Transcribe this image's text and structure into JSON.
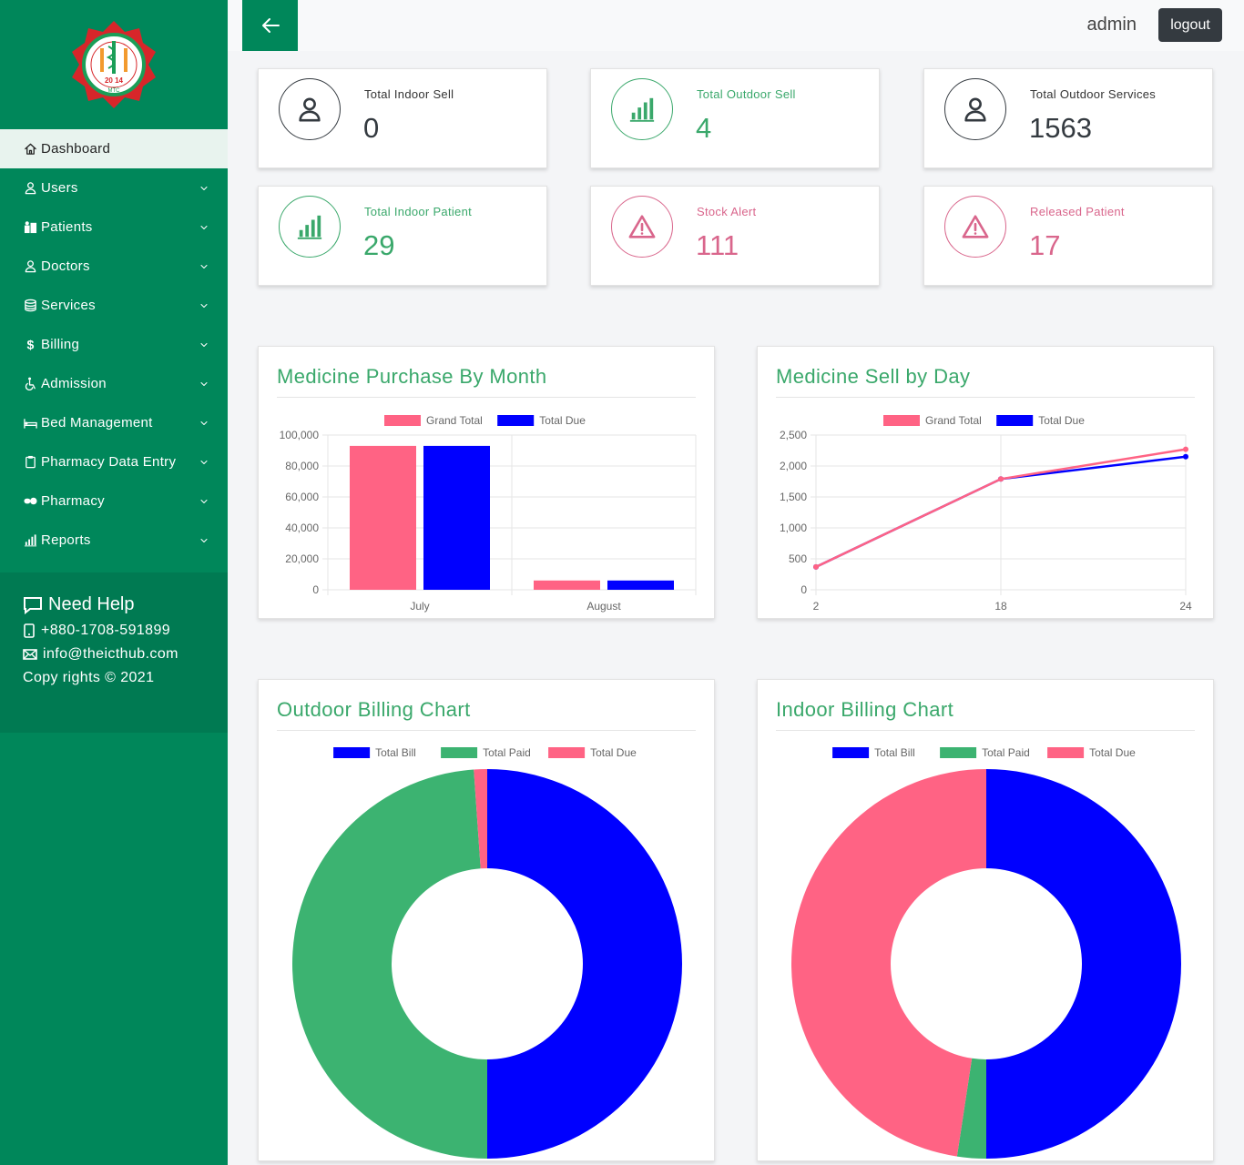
{
  "app": {
    "logo_text": [
      "MOMTAJ TRAUMA CENTRE",
      "20",
      "14",
      "MTC"
    ]
  },
  "sidebar": {
    "items": [
      {
        "label": "Dashboard",
        "icon": "home-icon",
        "active": true
      },
      {
        "label": "Users",
        "icon": "user-icon"
      },
      {
        "label": "Patients",
        "icon": "patients-icon"
      },
      {
        "label": "Doctors",
        "icon": "user-icon"
      },
      {
        "label": "Services",
        "icon": "database-icon"
      },
      {
        "label": "Billing",
        "icon": "dollar-icon"
      },
      {
        "label": "Admission",
        "icon": "wheelchair-icon"
      },
      {
        "label": "Bed Management",
        "icon": "bed-icon"
      },
      {
        "label": "Pharmacy Data Entry",
        "icon": "clipboard-icon"
      },
      {
        "label": "Pharmacy",
        "icon": "pills-icon"
      },
      {
        "label": "Reports",
        "icon": "bar-chart-icon"
      }
    ],
    "help": {
      "title": "Need Help",
      "phone": "+880-1708-591899",
      "email": "info@theicthub.com",
      "copyright": "Copy rights © 2021"
    }
  },
  "topbar": {
    "user": "admin",
    "logout_label": "logout"
  },
  "stats": [
    {
      "label": "Total Indoor Sell",
      "value": "0",
      "color": "#343a40",
      "icon": "user-icon"
    },
    {
      "label": "Total Outdoor Sell",
      "value": "4",
      "color": "#3aa86b",
      "icon": "bar-chart-icon"
    },
    {
      "label": "Total Outdoor Services",
      "value": "1563",
      "color": "#343a40",
      "icon": "user-icon"
    },
    {
      "label": "Total Indoor Patient",
      "value": "29",
      "color": "#3aa86b",
      "icon": "bar-chart-icon"
    },
    {
      "label": "Stock Alert",
      "value": "111",
      "color": "#d9668c",
      "icon": "warning-icon"
    },
    {
      "label": "Released Patient",
      "value": "17",
      "color": "#d9668c",
      "icon": "warning-icon"
    }
  ],
  "colors": {
    "brand": "#00875a",
    "pink": "#ff6384",
    "blue": "#0000ff",
    "green": "#3cb371"
  },
  "chart_data": [
    {
      "type": "bar",
      "title": "Medicine Purchase By Month",
      "categories": [
        "July",
        "August"
      ],
      "series": [
        {
          "name": "Grand Total",
          "values": [
            93000,
            6000
          ],
          "color": "#ff6384"
        },
        {
          "name": "Total Due",
          "values": [
            93000,
            6000
          ],
          "color": "#0000ff"
        }
      ],
      "ylim": [
        0,
        100000
      ],
      "yticks": [
        "0",
        "20,000",
        "40,000",
        "60,000",
        "80,000",
        "100,000"
      ],
      "grid": true,
      "legend": "top"
    },
    {
      "type": "line",
      "title": "Medicine Sell by Day",
      "x": [
        "2",
        "18",
        "24"
      ],
      "series": [
        {
          "name": "Grand Total",
          "values": [
            370,
            1790,
            2270
          ],
          "color": "#ff6384"
        },
        {
          "name": "Total Due",
          "values": [
            370,
            1790,
            2150
          ],
          "color": "#0000ff"
        }
      ],
      "ylim": [
        0,
        2500
      ],
      "yticks": [
        "0",
        "500",
        "1,000",
        "1,500",
        "2,000",
        "2,500"
      ],
      "grid": true,
      "legend": "top"
    },
    {
      "type": "pie",
      "title": "Outdoor Billing Chart",
      "labels": [
        "Total Bill",
        "Total Paid",
        "Total Due"
      ],
      "values": [
        50,
        48.9,
        1.1
      ],
      "colors": [
        "#0000ff",
        "#3cb371",
        "#ff6384"
      ],
      "legend": "top"
    },
    {
      "type": "pie",
      "title": "Indoor Billing Chart",
      "labels": [
        "Total Bill",
        "Total Paid",
        "Total Due"
      ],
      "values": [
        50,
        2.4,
        47.6
      ],
      "colors": [
        "#0000ff",
        "#3cb371",
        "#ff6384"
      ],
      "legend": "top"
    }
  ]
}
